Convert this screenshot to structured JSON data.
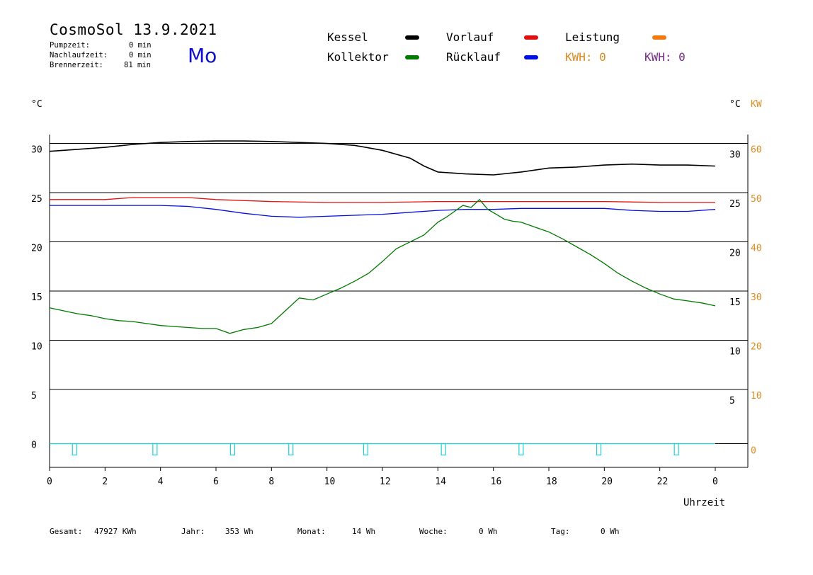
{
  "header": {
    "title": "CosmoSol 13.9.2021",
    "weekday": "Mo",
    "stats": [
      {
        "label": "Pumpzeit:",
        "value": "0 min"
      },
      {
        "label": "Nachlaufzeit:",
        "value": "0 min"
      },
      {
        "label": "Brennerzeit:",
        "value": "81 min"
      }
    ]
  },
  "legend": {
    "kessel": "Kessel",
    "kollektor": "Kollektor",
    "vorlauf": "Vorlauf",
    "ruecklauf": "Rücklauf",
    "leistung": "Leistung",
    "kwh_1": "KWH: 0",
    "kwh_2": "KWH: 0"
  },
  "colors": {
    "kessel": "#000000",
    "kollektor": "#007a00",
    "vorlauf": "#e01010",
    "ruecklauf": "#0010e0",
    "leistung": "#f07a10",
    "pump": "#20d0d0",
    "kw_axis": "#e08a1e",
    "kwh_2": "#7a2a8a"
  },
  "footer": {
    "gesamt_label": "Gesamt:",
    "gesamt_value": "47927 KWh",
    "jahr_label": "Jahr:",
    "jahr_value": "353 Wh",
    "monat_label": "Monat:",
    "monat_value": "14 Wh",
    "woche_label": "Woche:",
    "woche_value": "0 Wh",
    "tag_label": "Tag:",
    "tag_value": "0 Wh"
  },
  "chart_data": {
    "type": "line",
    "xlabel": "Uhrzeit",
    "ylabel_left": "°C",
    "ylabel_right": "°C",
    "ylabel_right2": "KW",
    "xlim": [
      0,
      24
    ],
    "ylim": [
      -2.5,
      31.5
    ],
    "ylim_kw": [
      -5,
      63
    ],
    "x_ticks": [
      "0",
      "2",
      "4",
      "6",
      "8",
      "10",
      "12",
      "14",
      "16",
      "18",
      "20",
      "22",
      "0"
    ],
    "y_ticks_left": [
      "30",
      "25",
      "20",
      "15",
      "10",
      "5",
      "0"
    ],
    "y_ticks_right": [
      "30",
      "25",
      "20",
      "15",
      "10",
      "5"
    ],
    "y_ticks_kw": [
      "60",
      "50",
      "40",
      "30",
      "20",
      "10",
      "0"
    ],
    "grid": true,
    "series": [
      {
        "name": "Kessel",
        "key": "kessel",
        "x": [
          0,
          1,
          2,
          3,
          4,
          5,
          6,
          7,
          8,
          9,
          10,
          11,
          12,
          13,
          13.5,
          14,
          15,
          16,
          17,
          18,
          19,
          20,
          21,
          22,
          23,
          24
        ],
        "y": [
          29.7,
          29.9,
          30.1,
          30.4,
          30.6,
          30.7,
          30.75,
          30.75,
          30.7,
          30.6,
          30.5,
          30.3,
          29.8,
          29.0,
          28.2,
          27.6,
          27.4,
          27.3,
          27.6,
          28.0,
          28.1,
          28.3,
          28.4,
          28.3,
          28.3,
          28.2
        ]
      },
      {
        "name": "Vorlauf",
        "key": "vorlauf",
        "x": [
          0,
          2,
          3,
          4,
          5,
          6,
          8,
          10,
          12,
          14,
          16,
          18,
          20,
          22,
          24
        ],
        "y": [
          24.8,
          24.8,
          25.0,
          25.0,
          25.0,
          24.8,
          24.6,
          24.5,
          24.5,
          24.6,
          24.6,
          24.6,
          24.6,
          24.5,
          24.5
        ]
      },
      {
        "name": "Rücklauf",
        "key": "ruecklauf",
        "x": [
          0,
          2,
          4,
          5,
          6,
          7,
          8,
          9,
          10,
          11,
          12,
          13,
          14,
          15,
          16,
          17,
          18,
          19,
          20,
          21,
          22,
          23,
          24
        ],
        "y": [
          24.2,
          24.2,
          24.2,
          24.1,
          23.8,
          23.4,
          23.1,
          23.0,
          23.1,
          23.2,
          23.3,
          23.5,
          23.7,
          23.8,
          23.8,
          23.9,
          23.9,
          23.9,
          23.9,
          23.7,
          23.6,
          23.6,
          23.8
        ]
      },
      {
        "name": "Kollektor",
        "key": "kollektor",
        "x": [
          0,
          0.5,
          1,
          1.5,
          2,
          2.5,
          3,
          3.5,
          4,
          4.5,
          5,
          5.5,
          6,
          6.5,
          7,
          7.5,
          8,
          8.5,
          9,
          9.5,
          10,
          10.5,
          11,
          11.5,
          12,
          12.5,
          13,
          13.5,
          14,
          14.3,
          14.6,
          14.9,
          15.2,
          15.5,
          15.8,
          16.1,
          16.4,
          16.7,
          17,
          17.5,
          18,
          18.5,
          19,
          19.5,
          20,
          20.5,
          21,
          21.5,
          22,
          22.5,
          23,
          23.5,
          24
        ],
        "y": [
          13.8,
          13.5,
          13.2,
          13.0,
          12.7,
          12.5,
          12.4,
          12.2,
          12.0,
          11.9,
          11.8,
          11.7,
          11.7,
          11.2,
          11.6,
          11.8,
          12.2,
          13.5,
          14.8,
          14.6,
          15.2,
          15.8,
          16.5,
          17.3,
          18.5,
          19.8,
          20.5,
          21.2,
          22.5,
          23.0,
          23.6,
          24.2,
          24.0,
          24.8,
          23.8,
          23.3,
          22.8,
          22.6,
          22.5,
          22.0,
          21.5,
          20.8,
          20.0,
          19.2,
          18.3,
          17.3,
          16.5,
          15.8,
          15.2,
          14.7,
          14.5,
          14.3,
          14.0
        ]
      }
    ],
    "pump_markers_x": [
      0.9,
      3.8,
      6.6,
      8.7,
      11.4,
      14.2,
      17.0,
      19.8,
      22.6
    ]
  }
}
